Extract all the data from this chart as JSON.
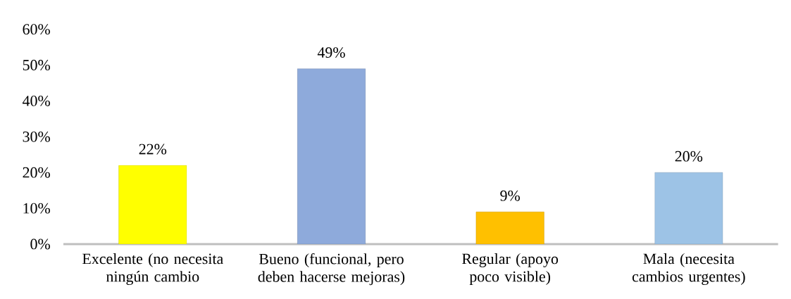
{
  "chart_data": {
    "type": "bar",
    "categories": [
      "Excelente (no necesita ningún cambio",
      "Bueno (funcional, pero deben hacerse mejoras)",
      "Regular (apoyo poco visible)",
      "Mala (necesita cambios urgentes)"
    ],
    "values": [
      22,
      49,
      9,
      20
    ],
    "colors": [
      "#ffff00",
      "#8eaadb",
      "#ffc000",
      "#9dc3e6"
    ],
    "value_labels": [
      "22%",
      "49%",
      "9%",
      "20%"
    ],
    "ylim": [
      0,
      60
    ],
    "yticks": [
      {
        "value": 0,
        "label": "0%"
      },
      {
        "value": 10,
        "label": "10%"
      },
      {
        "value": 20,
        "label": "20%"
      },
      {
        "value": 30,
        "label": "30%"
      },
      {
        "value": 40,
        "label": "40%"
      },
      {
        "value": 50,
        "label": "50%"
      },
      {
        "value": 60,
        "label": "60%"
      }
    ],
    "grid": false
  }
}
